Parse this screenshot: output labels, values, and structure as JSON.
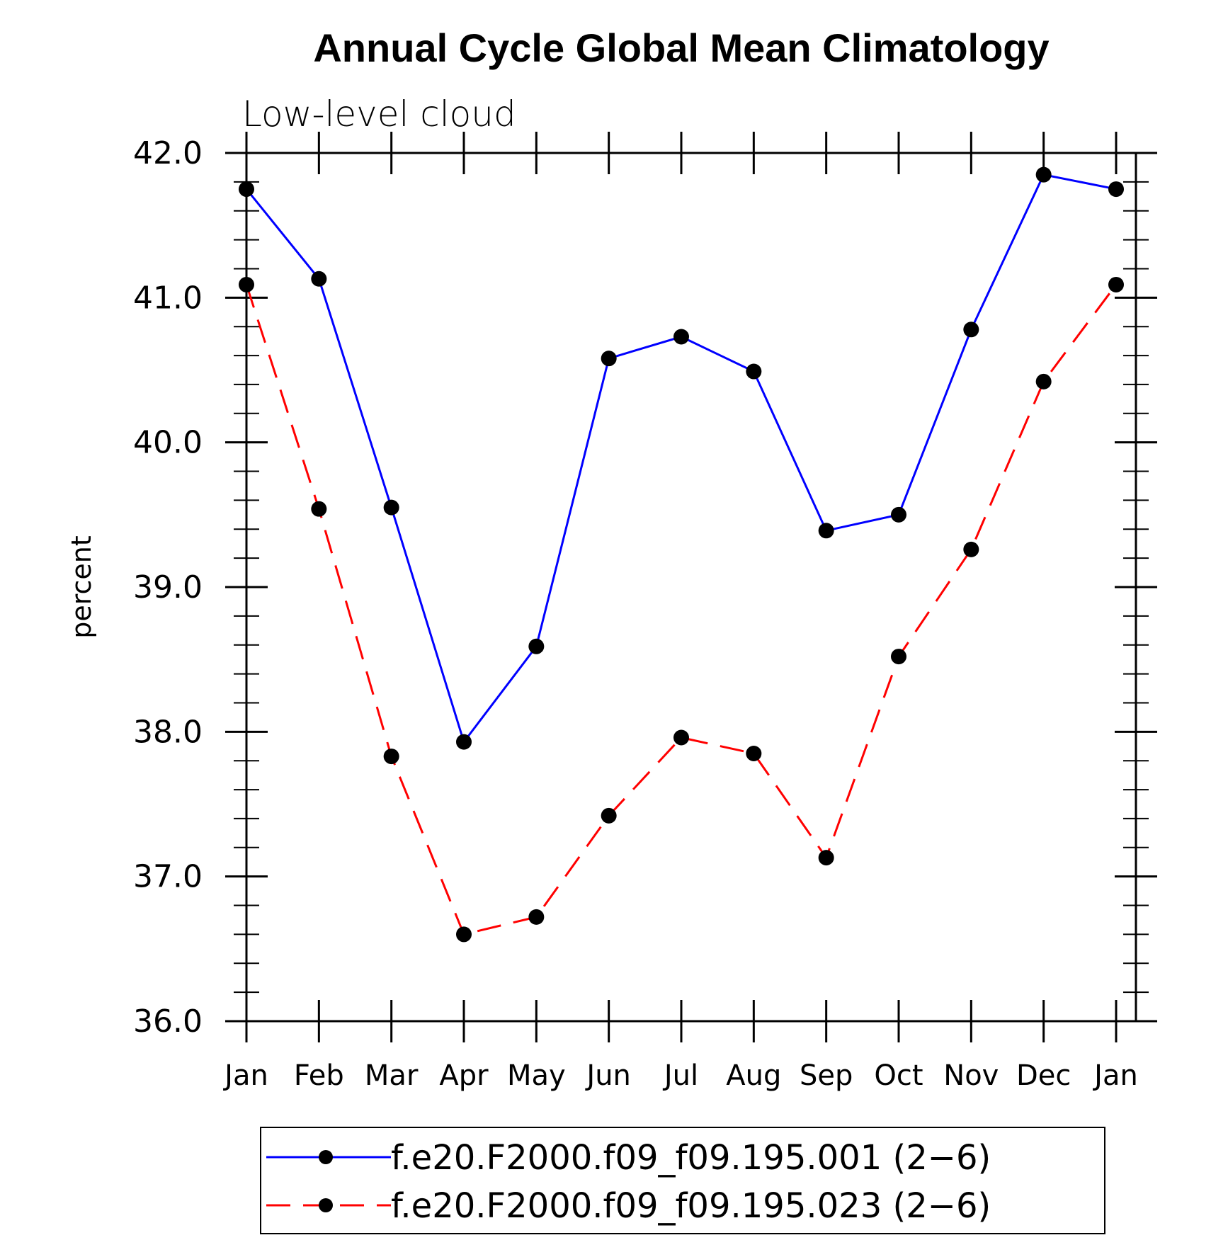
{
  "chart_data": {
    "type": "line",
    "title": "Annual Cycle Global Mean Climatology",
    "subtitle": "Low-level cloud",
    "xlabel": "",
    "ylabel": "percent",
    "ylim": [
      36.0,
      42.0
    ],
    "y_ticks": [
      "36.0",
      "37.0",
      "38.0",
      "39.0",
      "40.0",
      "41.0",
      "42.0"
    ],
    "categories": [
      "Jan",
      "Feb",
      "Mar",
      "Apr",
      "May",
      "Jun",
      "Jul",
      "Aug",
      "Sep",
      "Oct",
      "Nov",
      "Dec",
      "Jan"
    ],
    "grid": false,
    "legend_position": "bottom-center",
    "series": [
      {
        "name": "f.e20.F2000.f09_f09.195.001 (2−6)",
        "color": "#0000ff",
        "line_style": "solid",
        "marker": "filled-circle",
        "values": [
          41.75,
          41.13,
          39.55,
          37.93,
          38.59,
          40.58,
          40.73,
          40.49,
          39.39,
          39.5,
          40.78,
          41.85,
          41.75
        ]
      },
      {
        "name": "f.e20.F2000.f09_f09.195.023 (2−6)",
        "color": "#ff0000",
        "line_style": "dashed",
        "marker": "filled-circle",
        "values": [
          41.09,
          39.54,
          37.83,
          36.6,
          36.72,
          37.42,
          37.96,
          37.85,
          37.13,
          38.52,
          39.26,
          40.42,
          41.09
        ]
      }
    ]
  }
}
